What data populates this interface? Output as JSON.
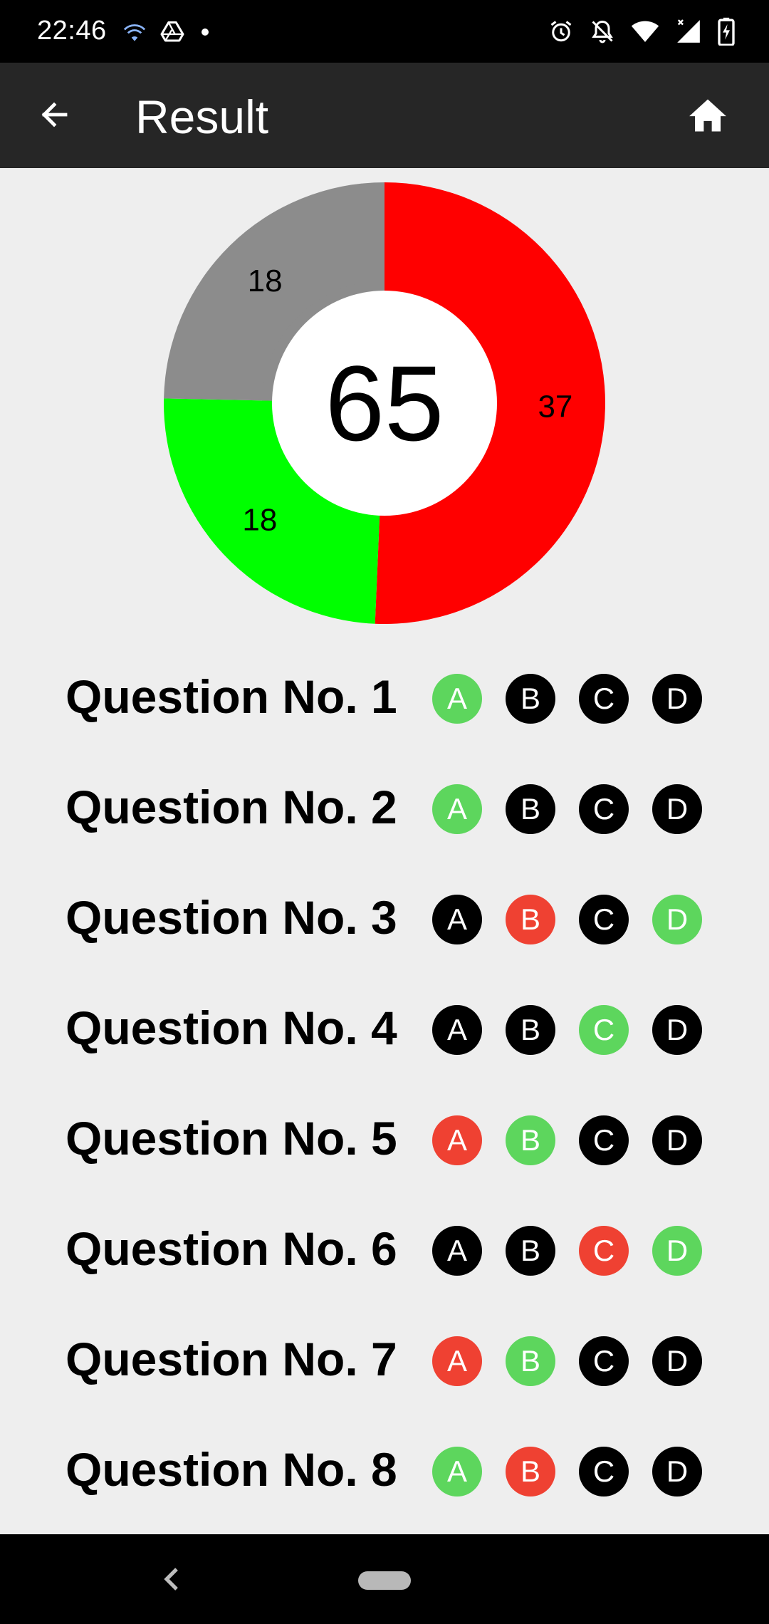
{
  "status_bar": {
    "time": "22:46",
    "icons": [
      "wifi-calling-icon",
      "drive-icon",
      "notification-dot-icon",
      "alarm-icon",
      "notifications-off-icon",
      "wifi-icon",
      "signal-icon",
      "battery-charging-icon"
    ]
  },
  "app_bar": {
    "title": "Result",
    "back_icon": "arrow-back-icon",
    "home_icon": "home-icon"
  },
  "score": {
    "value": "65"
  },
  "chart_data": {
    "type": "pie",
    "variant": "donut",
    "center_text": "65",
    "slices": [
      {
        "value": 37,
        "label": "37",
        "color": "#ff0000"
      },
      {
        "value": 18,
        "label": "18",
        "color": "#00ff00"
      },
      {
        "value": 18,
        "label": "18",
        "color": "#8c8c8c"
      }
    ]
  },
  "colors": {
    "correct": "#5dd65d",
    "wrong": "#ef4132",
    "neutral": "#000000",
    "app_bar": "#262626",
    "background": "#eeeeee"
  },
  "questions": [
    {
      "label": "Question No. 1",
      "options": [
        {
          "letter": "A",
          "state": "correct"
        },
        {
          "letter": "B",
          "state": "neutral"
        },
        {
          "letter": "C",
          "state": "neutral"
        },
        {
          "letter": "D",
          "state": "neutral"
        }
      ]
    },
    {
      "label": "Question No. 2",
      "options": [
        {
          "letter": "A",
          "state": "correct"
        },
        {
          "letter": "B",
          "state": "neutral"
        },
        {
          "letter": "C",
          "state": "neutral"
        },
        {
          "letter": "D",
          "state": "neutral"
        }
      ]
    },
    {
      "label": "Question No. 3",
      "options": [
        {
          "letter": "A",
          "state": "neutral"
        },
        {
          "letter": "B",
          "state": "wrong"
        },
        {
          "letter": "C",
          "state": "neutral"
        },
        {
          "letter": "D",
          "state": "correct"
        }
      ]
    },
    {
      "label": "Question No. 4",
      "options": [
        {
          "letter": "A",
          "state": "neutral"
        },
        {
          "letter": "B",
          "state": "neutral"
        },
        {
          "letter": "C",
          "state": "correct"
        },
        {
          "letter": "D",
          "state": "neutral"
        }
      ]
    },
    {
      "label": "Question No. 5",
      "options": [
        {
          "letter": "A",
          "state": "wrong"
        },
        {
          "letter": "B",
          "state": "correct"
        },
        {
          "letter": "C",
          "state": "neutral"
        },
        {
          "letter": "D",
          "state": "neutral"
        }
      ]
    },
    {
      "label": "Question No. 6",
      "options": [
        {
          "letter": "A",
          "state": "neutral"
        },
        {
          "letter": "B",
          "state": "neutral"
        },
        {
          "letter": "C",
          "state": "wrong"
        },
        {
          "letter": "D",
          "state": "correct"
        }
      ]
    },
    {
      "label": "Question No. 7",
      "options": [
        {
          "letter": "A",
          "state": "wrong"
        },
        {
          "letter": "B",
          "state": "correct"
        },
        {
          "letter": "C",
          "state": "neutral"
        },
        {
          "letter": "D",
          "state": "neutral"
        }
      ]
    },
    {
      "label": "Question No. 8",
      "options": [
        {
          "letter": "A",
          "state": "correct"
        },
        {
          "letter": "B",
          "state": "wrong"
        },
        {
          "letter": "C",
          "state": "neutral"
        },
        {
          "letter": "D",
          "state": "neutral"
        }
      ]
    }
  ],
  "nav_bar": {
    "back_icon": "nav-back-icon",
    "home_icon": "nav-home-pill-icon"
  }
}
